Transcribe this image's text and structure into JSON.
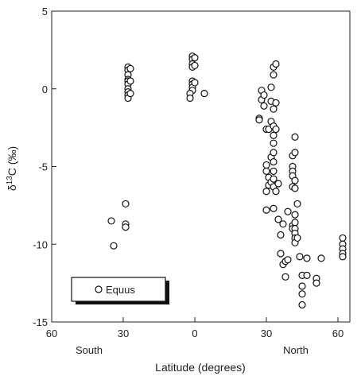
{
  "chart_data": {
    "type": "scatter",
    "title": "",
    "xlabel": "Latitude (degrees)",
    "ylabel": "δ13C (‰)",
    "ylabel_parts": {
      "delta": "δ",
      "sup": "13",
      "rest": "C (‰)"
    },
    "x_ticks": [
      {
        "value": -60,
        "label": "60"
      },
      {
        "value": -30,
        "label": "30"
      },
      {
        "value": 0,
        "label": "0"
      },
      {
        "value": 30,
        "label": "30"
      },
      {
        "value": 60,
        "label": "60"
      }
    ],
    "y_ticks": [
      {
        "value": 5,
        "label": "5"
      },
      {
        "value": 0,
        "label": "0"
      },
      {
        "value": -5,
        "label": "-5"
      },
      {
        "value": -10,
        "label": "-10"
      },
      {
        "value": -15,
        "label": "-15"
      }
    ],
    "xlim": [
      -60,
      65
    ],
    "ylim": [
      -15,
      5
    ],
    "hemisphere_labels": {
      "south": "South",
      "north": "North"
    },
    "legend": {
      "label": "Equus",
      "placement": "bottom-left"
    },
    "grid": false,
    "marker": "open-circle",
    "series": [
      {
        "name": "Equus",
        "points": [
          {
            "x": -35,
            "y": -8.5
          },
          {
            "x": -34,
            "y": -10.1
          },
          {
            "x": -29,
            "y": -7.4
          },
          {
            "x": -29,
            "y": -8.7
          },
          {
            "x": -29,
            "y": -8.9
          },
          {
            "x": -28,
            "y": 1.4
          },
          {
            "x": -28,
            "y": 1.2
          },
          {
            "x": -28,
            "y": 0.9
          },
          {
            "x": -28,
            "y": 0.6
          },
          {
            "x": -28,
            "y": 0.5
          },
          {
            "x": -28,
            "y": 0.3
          },
          {
            "x": -28,
            "y": 0.0
          },
          {
            "x": -28,
            "y": -0.2
          },
          {
            "x": -28,
            "y": -0.4
          },
          {
            "x": -28,
            "y": -0.6
          },
          {
            "x": -27,
            "y": 1.3
          },
          {
            "x": -27,
            "y": 0.5
          },
          {
            "x": -27,
            "y": -0.3
          },
          {
            "x": -1,
            "y": 2.1
          },
          {
            "x": -1,
            "y": 1.9
          },
          {
            "x": -1,
            "y": 1.6
          },
          {
            "x": -1,
            "y": 1.4
          },
          {
            "x": -1,
            "y": 0.5
          },
          {
            "x": -1,
            "y": 0.3
          },
          {
            "x": -1,
            "y": 0.1
          },
          {
            "x": -1,
            "y": -0.1
          },
          {
            "x": -2,
            "y": -0.3
          },
          {
            "x": -2,
            "y": -0.6
          },
          {
            "x": 0,
            "y": 2.0
          },
          {
            "x": 0,
            "y": 1.5
          },
          {
            "x": 0,
            "y": 0.4
          },
          {
            "x": 4,
            "y": -0.3
          },
          {
            "x": 27,
            "y": -1.9
          },
          {
            "x": 27,
            "y": -2.0
          },
          {
            "x": 28,
            "y": -0.1
          },
          {
            "x": 28,
            "y": -0.7
          },
          {
            "x": 29,
            "y": -0.4
          },
          {
            "x": 29,
            "y": -1.1
          },
          {
            "x": 30,
            "y": -2.6
          },
          {
            "x": 30,
            "y": -4.9
          },
          {
            "x": 30,
            "y": -5.3
          },
          {
            "x": 30,
            "y": -6.6
          },
          {
            "x": 30,
            "y": -7.8
          },
          {
            "x": 31,
            "y": -2.6
          },
          {
            "x": 31,
            "y": -5.7
          },
          {
            "x": 31,
            "y": -6.2
          },
          {
            "x": 32,
            "y": 0.1
          },
          {
            "x": 32,
            "y": -0.8
          },
          {
            "x": 32,
            "y": -2.1
          },
          {
            "x": 32,
            "y": -4.4
          },
          {
            "x": 32,
            "y": -6.0
          },
          {
            "x": 33,
            "y": 1.4
          },
          {
            "x": 33,
            "y": 0.9
          },
          {
            "x": 33,
            "y": -1.3
          },
          {
            "x": 33,
            "y": -2.4
          },
          {
            "x": 33,
            "y": -3.0
          },
          {
            "x": 33,
            "y": -3.5
          },
          {
            "x": 33,
            "y": -4.1
          },
          {
            "x": 33,
            "y": -4.7
          },
          {
            "x": 33,
            "y": -5.3
          },
          {
            "x": 33,
            "y": -5.8
          },
          {
            "x": 33,
            "y": -6.3
          },
          {
            "x": 33,
            "y": -7.7
          },
          {
            "x": 34,
            "y": 1.6
          },
          {
            "x": 34,
            "y": -0.9
          },
          {
            "x": 34,
            "y": -2.6
          },
          {
            "x": 34,
            "y": -6.6
          },
          {
            "x": 35,
            "y": -6.1
          },
          {
            "x": 35,
            "y": -8.4
          },
          {
            "x": 36,
            "y": -9.4
          },
          {
            "x": 36,
            "y": -10.6
          },
          {
            "x": 37,
            "y": -8.7
          },
          {
            "x": 37,
            "y": -11.3
          },
          {
            "x": 38,
            "y": -12.1
          },
          {
            "x": 38,
            "y": -11.1
          },
          {
            "x": 39,
            "y": -7.9
          },
          {
            "x": 39,
            "y": -11.0
          },
          {
            "x": 41,
            "y": -4.3
          },
          {
            "x": 41,
            "y": -5.0
          },
          {
            "x": 41,
            "y": -5.3
          },
          {
            "x": 41,
            "y": -5.6
          },
          {
            "x": 41,
            "y": -6.3
          },
          {
            "x": 41,
            "y": -8.8
          },
          {
            "x": 41,
            "y": -9.0
          },
          {
            "x": 42,
            "y": -3.1
          },
          {
            "x": 42,
            "y": -4.1
          },
          {
            "x": 42,
            "y": -5.9
          },
          {
            "x": 42,
            "y": -6.4
          },
          {
            "x": 42,
            "y": -8.1
          },
          {
            "x": 42,
            "y": -8.6
          },
          {
            "x": 42,
            "y": -9.0
          },
          {
            "x": 42,
            "y": -9.3
          },
          {
            "x": 42,
            "y": -9.6
          },
          {
            "x": 42,
            "y": -9.9
          },
          {
            "x": 43,
            "y": -7.4
          },
          {
            "x": 43,
            "y": -9.6
          },
          {
            "x": 44,
            "y": -10.8
          },
          {
            "x": 45,
            "y": -12.0
          },
          {
            "x": 45,
            "y": -12.7
          },
          {
            "x": 45,
            "y": -13.2
          },
          {
            "x": 45,
            "y": -13.9
          },
          {
            "x": 47,
            "y": -10.9
          },
          {
            "x": 47,
            "y": -12.0
          },
          {
            "x": 51,
            "y": -12.2
          },
          {
            "x": 51,
            "y": -12.5
          },
          {
            "x": 53,
            "y": -10.9
          },
          {
            "x": 62,
            "y": -9.6
          },
          {
            "x": 62,
            "y": -10.0
          },
          {
            "x": 62,
            "y": -10.3
          },
          {
            "x": 62,
            "y": -10.6
          },
          {
            "x": 62,
            "y": -10.8
          }
        ]
      }
    ]
  },
  "colors": {
    "axis": "#222222",
    "marker_stroke": "#111111",
    "marker_fill": "#ffffff"
  }
}
